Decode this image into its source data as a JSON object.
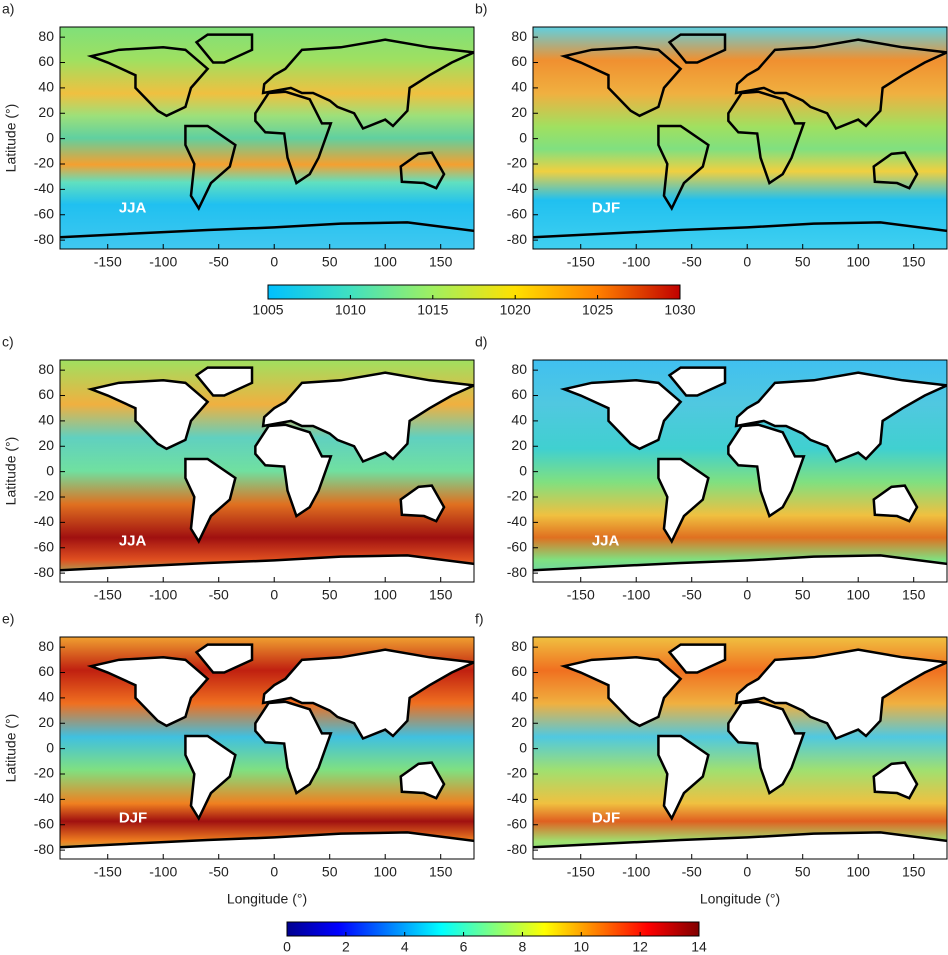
{
  "xlim": [
    -193,
    180
  ],
  "ylim": [
    -87,
    88
  ],
  "xticks": [
    -150,
    -100,
    -50,
    0,
    50,
    100,
    150
  ],
  "yticks": [
    -80,
    -60,
    -40,
    -20,
    0,
    20,
    40,
    60,
    80
  ],
  "xlabel": "Longitude (°)",
  "ylabel": "Latitude (°)",
  "panels": [
    {
      "label": "a)",
      "season": "JJA"
    },
    {
      "label": "b)",
      "season": "DJF"
    },
    {
      "label": "c)",
      "season": "JJA"
    },
    {
      "label": "d)",
      "season": "JJA"
    },
    {
      "label": "e)",
      "season": "DJF"
    },
    {
      "label": "f)",
      "season": "DJF"
    }
  ],
  "colorbars": [
    {
      "lim": [
        1005,
        1030
      ],
      "ticks": [
        1005,
        1010,
        1015,
        1020,
        1025,
        1030
      ]
    },
    {
      "lim": [
        0,
        14
      ],
      "ticks": [
        0,
        2,
        4,
        6,
        8,
        10,
        12,
        14
      ]
    }
  ]
}
